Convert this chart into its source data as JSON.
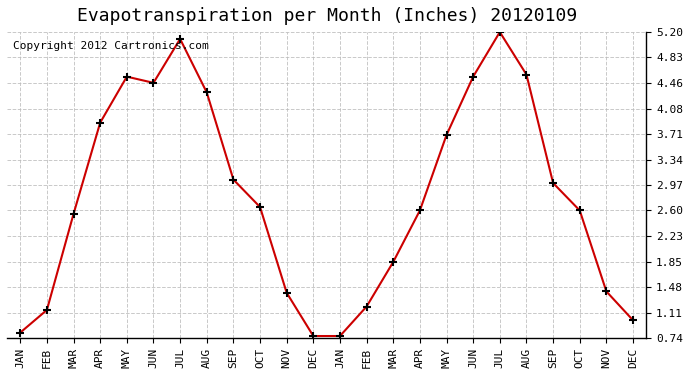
{
  "title": "Evapotranspiration per Month (Inches) 20120109",
  "copyright_text": "Copyright 2012 Cartronics.com",
  "x_labels": [
    "JAN",
    "FEB",
    "MAR",
    "APR",
    "MAY",
    "JUN",
    "JUL",
    "AUG",
    "SEP",
    "OCT",
    "NOV",
    "DEC",
    "JAN",
    "FEB",
    "MAR",
    "APR",
    "MAY",
    "JUN",
    "JUL",
    "AUG",
    "SEP",
    "OCT",
    "NOV",
    "DEC"
  ],
  "values": [
    0.82,
    1.15,
    2.55,
    3.88,
    4.55,
    4.46,
    5.1,
    4.32,
    3.05,
    2.65,
    1.4,
    0.77,
    0.77,
    1.2,
    1.85,
    2.6,
    3.7,
    4.55,
    5.2,
    4.58,
    3.0,
    2.6,
    1.42,
    1.0
  ],
  "line_color": "#cc0000",
  "marker_color": "#000000",
  "bg_color": "#ffffff",
  "grid_color": "#bbbbbb",
  "y_ticks": [
    0.74,
    1.11,
    1.48,
    1.85,
    2.23,
    2.6,
    2.97,
    3.34,
    3.71,
    4.08,
    4.46,
    4.83,
    5.2
  ],
  "ylim": [
    0.74,
    5.2
  ],
  "title_fontsize": 13,
  "copyright_fontsize": 8,
  "tick_fontsize": 8
}
